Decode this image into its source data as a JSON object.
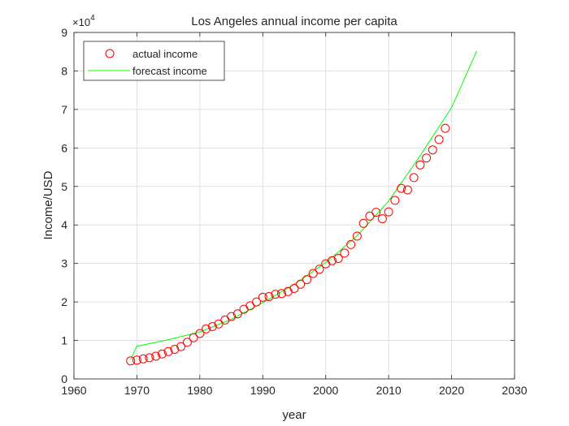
{
  "chart_data": {
    "type": "scatter",
    "title": "Los Angeles annual income per capita",
    "xlabel": "year",
    "ylabel": "Income/USD",
    "xlim": [
      1960,
      2030
    ],
    "ylim": [
      0,
      9
    ],
    "y_scale_factor_label": "×10",
    "y_scale_factor_exponent": "4",
    "xticks": [
      "1960",
      "1970",
      "1980",
      "1990",
      "2000",
      "2010",
      "2020",
      "2030"
    ],
    "yticks": [
      "0",
      "1",
      "2",
      "3",
      "4",
      "5",
      "6",
      "7",
      "8",
      "9"
    ],
    "grid": true,
    "legend_position": "top-left",
    "series": [
      {
        "name": "actual income",
        "kind": "markers",
        "marker": "circle",
        "color": "#ff0000",
        "x": [
          1969,
          1970,
          1971,
          1972,
          1973,
          1974,
          1975,
          1976,
          1977,
          1978,
          1979,
          1980,
          1981,
          1982,
          1983,
          1984,
          1985,
          1986,
          1987,
          1988,
          1989,
          1990,
          1991,
          1992,
          1993,
          1994,
          1995,
          1996,
          1997,
          1998,
          1999,
          2000,
          2001,
          2002,
          2003,
          2004,
          2005,
          2006,
          2007,
          2008,
          2009,
          2010,
          2011,
          2012,
          2013,
          2014,
          2015,
          2016,
          2017,
          2018,
          2019
        ],
        "y": [
          0.47,
          0.49,
          0.52,
          0.55,
          0.59,
          0.65,
          0.71,
          0.77,
          0.84,
          0.95,
          1.07,
          1.18,
          1.3,
          1.36,
          1.43,
          1.53,
          1.62,
          1.69,
          1.81,
          1.9,
          2.0,
          2.12,
          2.14,
          2.2,
          2.22,
          2.27,
          2.35,
          2.46,
          2.58,
          2.74,
          2.85,
          2.99,
          3.07,
          3.13,
          3.27,
          3.49,
          3.71,
          4.04,
          4.23,
          4.33,
          4.16,
          4.34,
          4.64,
          4.95,
          4.91,
          5.23,
          5.56,
          5.74,
          5.95,
          6.22,
          6.51
        ]
      },
      {
        "name": "forecast income",
        "kind": "line",
        "color": "#00ff00",
        "x": [
          1969,
          1970,
          1975,
          1980,
          1985,
          1990,
          1995,
          2000,
          2005,
          2010,
          2015,
          2020,
          2024
        ],
        "y": [
          0.5,
          0.85,
          1.02,
          1.22,
          1.55,
          1.98,
          2.46,
          3.02,
          3.72,
          4.62,
          5.8,
          7.05,
          8.52
        ]
      }
    ]
  }
}
